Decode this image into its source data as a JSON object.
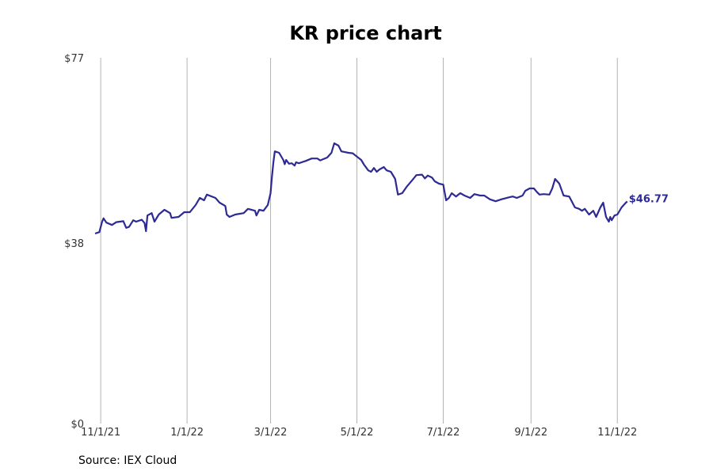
{
  "chart_data": {
    "type": "line",
    "title": "KR price chart",
    "source": "Source: IEX Cloud",
    "color": "#2e2a94",
    "gridline_color": "#b3b3b3",
    "grid": "vertical",
    "x_start": "2021-10-28",
    "x_end": "2022-11-21",
    "ylim": [
      0,
      77
    ],
    "y_ticks": [
      {
        "value": 0,
        "label": "$0"
      },
      {
        "value": 38,
        "label": "$38"
      },
      {
        "value": 77,
        "label": "$77"
      }
    ],
    "x_ticks": [
      {
        "date": "2021-11-01",
        "label": "11/1/21"
      },
      {
        "date": "2022-01-01",
        "label": "1/1/22"
      },
      {
        "date": "2022-03-01",
        "label": "3/1/22"
      },
      {
        "date": "2022-05-01",
        "label": "5/1/22"
      },
      {
        "date": "2022-07-01",
        "label": "7/1/22"
      },
      {
        "date": "2022-09-01",
        "label": "9/1/22"
      },
      {
        "date": "2022-11-01",
        "label": "11/1/22"
      }
    ],
    "last_value_label": "$46.77",
    "series": [
      {
        "points": [
          [
            "2021-10-28",
            40.0
          ],
          [
            "2021-10-31",
            40.3
          ],
          [
            "2021-11-02",
            42.5
          ],
          [
            "2021-11-03",
            43.2
          ],
          [
            "2021-11-05",
            42.3
          ],
          [
            "2021-11-09",
            41.8
          ],
          [
            "2021-11-12",
            42.4
          ],
          [
            "2021-11-17",
            42.6
          ],
          [
            "2021-11-19",
            41.2
          ],
          [
            "2021-11-21",
            41.4
          ],
          [
            "2021-11-24",
            42.8
          ],
          [
            "2021-11-26",
            42.5
          ],
          [
            "2021-11-30",
            42.9
          ],
          [
            "2021-12-02",
            42.2
          ],
          [
            "2021-12-03",
            40.5
          ],
          [
            "2021-12-04",
            43.8
          ],
          [
            "2021-12-07",
            44.3
          ],
          [
            "2021-12-09",
            42.5
          ],
          [
            "2021-12-12",
            44.0
          ],
          [
            "2021-12-16",
            45.0
          ],
          [
            "2021-12-20",
            44.3
          ],
          [
            "2021-12-21",
            43.3
          ],
          [
            "2021-12-26",
            43.5
          ],
          [
            "2021-12-30",
            44.5
          ],
          [
            "2022-01-03",
            44.5
          ],
          [
            "2022-01-07",
            46.0
          ],
          [
            "2022-01-10",
            47.5
          ],
          [
            "2022-01-13",
            47.0
          ],
          [
            "2022-01-15",
            48.2
          ],
          [
            "2022-01-21",
            47.5
          ],
          [
            "2022-01-24",
            46.5
          ],
          [
            "2022-01-28",
            45.8
          ],
          [
            "2022-01-29",
            44.0
          ],
          [
            "2022-01-31",
            43.5
          ],
          [
            "2022-02-04",
            44.0
          ],
          [
            "2022-02-10",
            44.3
          ],
          [
            "2022-02-13",
            45.2
          ],
          [
            "2022-02-18",
            44.8
          ],
          [
            "2022-02-19",
            43.8
          ],
          [
            "2022-02-21",
            45.0
          ],
          [
            "2022-02-24",
            44.8
          ],
          [
            "2022-02-27",
            46.0
          ],
          [
            "2022-03-01",
            48.5
          ],
          [
            "2022-03-02",
            52.0
          ],
          [
            "2022-03-03",
            55.0
          ],
          [
            "2022-03-04",
            57.3
          ],
          [
            "2022-03-07",
            57.0
          ],
          [
            "2022-03-10",
            55.5
          ],
          [
            "2022-03-11",
            54.6
          ],
          [
            "2022-03-12",
            55.5
          ],
          [
            "2022-03-14",
            54.7
          ],
          [
            "2022-03-16",
            54.8
          ],
          [
            "2022-03-18",
            54.3
          ],
          [
            "2022-03-19",
            55.0
          ],
          [
            "2022-03-21",
            54.8
          ],
          [
            "2022-03-23",
            55.0
          ],
          [
            "2022-03-26",
            55.3
          ],
          [
            "2022-03-30",
            55.8
          ],
          [
            "2022-04-03",
            55.8
          ],
          [
            "2022-04-05",
            55.4
          ],
          [
            "2022-04-10",
            56.0
          ],
          [
            "2022-04-13",
            57.0
          ],
          [
            "2022-04-15",
            59.0
          ],
          [
            "2022-04-18",
            58.5
          ],
          [
            "2022-04-20",
            57.3
          ],
          [
            "2022-04-25",
            57.0
          ],
          [
            "2022-04-28",
            56.9
          ],
          [
            "2022-05-01",
            56.2
          ],
          [
            "2022-05-04",
            55.5
          ],
          [
            "2022-05-06",
            54.5
          ],
          [
            "2022-05-09",
            53.3
          ],
          [
            "2022-05-11",
            53.0
          ],
          [
            "2022-05-13",
            53.8
          ],
          [
            "2022-05-15",
            53.0
          ],
          [
            "2022-05-17",
            53.5
          ],
          [
            "2022-05-20",
            54.0
          ],
          [
            "2022-05-22",
            53.3
          ],
          [
            "2022-05-25",
            53.0
          ],
          [
            "2022-05-28",
            51.5
          ],
          [
            "2022-05-30",
            48.2
          ],
          [
            "2022-06-02",
            48.5
          ],
          [
            "2022-06-05",
            49.8
          ],
          [
            "2022-06-09",
            51.2
          ],
          [
            "2022-06-12",
            52.3
          ],
          [
            "2022-06-16",
            52.4
          ],
          [
            "2022-06-18",
            51.6
          ],
          [
            "2022-06-20",
            52.2
          ],
          [
            "2022-06-23",
            51.8
          ],
          [
            "2022-06-25",
            51.0
          ],
          [
            "2022-06-28",
            50.5
          ],
          [
            "2022-07-01",
            50.3
          ],
          [
            "2022-07-03",
            47.0
          ],
          [
            "2022-07-05",
            47.5
          ],
          [
            "2022-07-07",
            48.5
          ],
          [
            "2022-07-10",
            47.8
          ],
          [
            "2022-07-13",
            48.5
          ],
          [
            "2022-07-16",
            48.0
          ],
          [
            "2022-07-20",
            47.5
          ],
          [
            "2022-07-23",
            48.3
          ],
          [
            "2022-07-27",
            48.0
          ],
          [
            "2022-07-30",
            48.0
          ],
          [
            "2022-08-03",
            47.2
          ],
          [
            "2022-08-07",
            46.8
          ],
          [
            "2022-08-11",
            47.2
          ],
          [
            "2022-08-16",
            47.6
          ],
          [
            "2022-08-19",
            47.8
          ],
          [
            "2022-08-22",
            47.5
          ],
          [
            "2022-08-26",
            48.0
          ],
          [
            "2022-08-28",
            49.0
          ],
          [
            "2022-08-31",
            49.5
          ],
          [
            "2022-09-03",
            49.5
          ],
          [
            "2022-09-05",
            48.8
          ],
          [
            "2022-09-07",
            48.2
          ],
          [
            "2022-09-10",
            48.3
          ],
          [
            "2022-09-14",
            48.2
          ],
          [
            "2022-09-16",
            49.5
          ],
          [
            "2022-09-18",
            51.5
          ],
          [
            "2022-09-21",
            50.5
          ],
          [
            "2022-09-24",
            48.0
          ],
          [
            "2022-09-28",
            47.8
          ],
          [
            "2022-10-02",
            45.5
          ],
          [
            "2022-10-05",
            45.2
          ],
          [
            "2022-10-07",
            44.8
          ],
          [
            "2022-10-09",
            45.2
          ],
          [
            "2022-10-12",
            44.0
          ],
          [
            "2022-10-15",
            44.8
          ],
          [
            "2022-10-17",
            43.5
          ],
          [
            "2022-10-20",
            45.5
          ],
          [
            "2022-10-22",
            46.5
          ],
          [
            "2022-10-24",
            43.5
          ],
          [
            "2022-10-26",
            42.5
          ],
          [
            "2022-10-27",
            43.5
          ],
          [
            "2022-10-28",
            42.8
          ],
          [
            "2022-10-30",
            43.8
          ],
          [
            "2022-11-01",
            44.0
          ],
          [
            "2022-11-04",
            45.5
          ],
          [
            "2022-11-07",
            46.5
          ],
          [
            "2022-11-08",
            46.77
          ]
        ]
      }
    ]
  }
}
